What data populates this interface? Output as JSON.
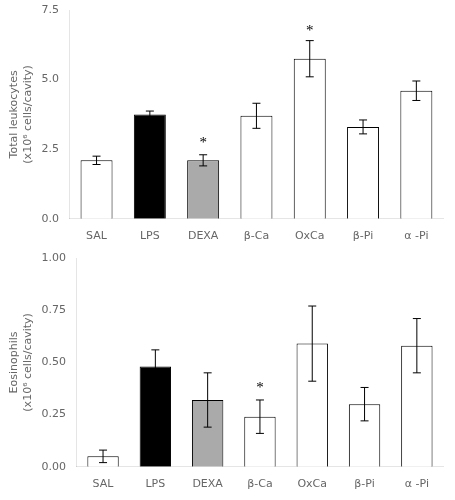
{
  "chart_data": [
    {
      "type": "bar",
      "categories": [
        "SAL",
        "LPS",
        "DEXA",
        "β-Ca",
        "OxCa",
        "β-Pi",
        "α -Pi"
      ],
      "values": [
        2.1,
        3.75,
        2.1,
        3.7,
        5.75,
        3.3,
        4.6
      ],
      "errors": [
        0.15,
        0.12,
        0.2,
        0.45,
        0.65,
        0.25,
        0.35
      ],
      "colors": [
        "white",
        "black",
        "#aaaaaa",
        "white",
        "white",
        "white",
        "white"
      ],
      "ylabel": "Total leukocytes\n(x10⁶ cells/cavity)",
      "ylim": [
        0,
        7.5
      ],
      "yticks": [
        {
          "value": 0.0,
          "label": "0.0"
        },
        2.5,
        {
          "value": 5.0,
          "label": "5.0"
        },
        7.5
      ],
      "annotations": [
        {
          "text": "*",
          "x": "DEXA",
          "y": 2.6
        },
        {
          "text": "*",
          "x": "OxCa",
          "y": 6.6
        }
      ],
      "grid": false
    },
    {
      "type": "bar",
      "categories": [
        "SAL",
        "LPS",
        "DEXA",
        "β-Ca",
        "OxCa",
        "β-Pi",
        "α -Pi"
      ],
      "values": [
        0.05,
        0.48,
        0.32,
        0.24,
        0.59,
        0.3,
        0.58
      ],
      "errors": [
        0.03,
        0.08,
        0.13,
        0.08,
        0.18,
        0.08,
        0.13
      ],
      "colors": [
        "white",
        "black",
        "#aaaaaa",
        "white",
        "white",
        "white",
        "white"
      ],
      "ylabel": "Eosinophils\n(x10⁶ cells/cavity)",
      "ylim": [
        0,
        1.0
      ],
      "yticks": [
        {
          "value": 0.0,
          "label": "0.00"
        },
        0.25,
        {
          "value": 0.5,
          "label": "0.50"
        },
        0.75,
        {
          "value": 1.0,
          "label": "1.00"
        }
      ],
      "annotations": [
        {
          "text": "*",
          "x": "β-Ca",
          "y": 0.36
        }
      ],
      "grid": false
    }
  ]
}
